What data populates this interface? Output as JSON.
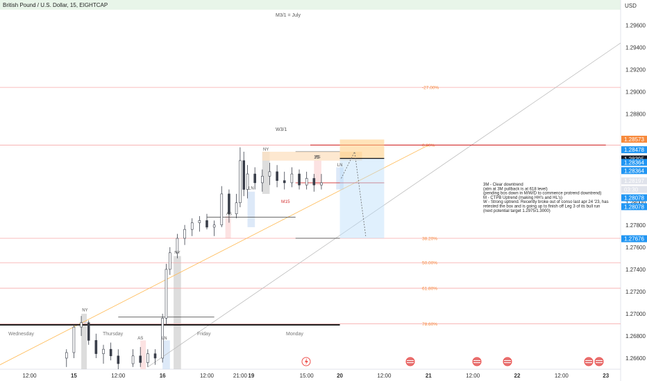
{
  "header": {
    "symbol_title": "British Pound / U.S. Dollar, 15, EIGHTCAP",
    "currency": "USD"
  },
  "annotations": {
    "monthly_label": "M3/1 = July",
    "weekly_label": "W3/1",
    "m15_label": "M15",
    "box_15_label": "15",
    "notes": [
      "3M - Clear downtrend",
      "(atm at 3M pullback is at 618 level)",
      "(pending bos down in M/W/D to commence protrend downtrend)",
      "M - CTPB Uptrend (making HH's and HL's)",
      "W - Strong uptrend. Recently broke out of conso last apr 24 '23, has",
      "retested the box and is going up to finish off Leg 3 of its bull run",
      "(next potential target 1.2975/1.3000)"
    ],
    "session_labels": [
      {
        "text": "NY",
        "x": "2023-06-15T03:00",
        "price": 1.2702
      },
      {
        "text": "AS",
        "x": "2023-06-15T18:00",
        "price": 1.2677
      },
      {
        "text": "LN",
        "x": "2023-06-16T00:30",
        "price": 1.2677
      },
      {
        "text": "NY",
        "x": "2023-06-16T04:00",
        "price": 1.2754
      },
      {
        "text": "AS",
        "x": "2023-06-16T18:00",
        "price": 1.2789
      },
      {
        "text": "LN",
        "x": "2023-06-17T00:00",
        "price": 1.2812
      },
      {
        "text": "NY",
        "x": "2023-06-17T04:00",
        "price": 1.2847
      },
      {
        "text": "AS",
        "x": "2023-06-17T18:00",
        "price": 1.284
      },
      {
        "text": "LN",
        "x": "2023-06-18T00:00",
        "price": 1.2833
      }
    ],
    "day_labels": [
      "Wednesday",
      "Thursday",
      "Friday",
      "Monday"
    ]
  },
  "price_axis": {
    "ticks": [
      "1.29600",
      "1.29400",
      "1.29200",
      "1.29000",
      "1.28800",
      "1.28000",
      "1.27800",
      "1.27600",
      "1.27400",
      "1.27200",
      "1.27000",
      "1.26800",
      "1.26600"
    ],
    "badges": [
      {
        "text": "1.28573",
        "price": 1.28573,
        "color": "#f7893b"
      },
      {
        "text": "1.28478",
        "price": 1.28478,
        "color": "#2196f3"
      },
      {
        "text": "1.28395",
        "price": 1.28395,
        "color": "#131722"
      },
      {
        "text": "1.28364",
        "price": 1.28364,
        "color": "#2196f3"
      },
      {
        "text": "1.28364",
        "price": 1.2829,
        "color": "#2196f3"
      },
      {
        "text": "1.28197",
        "price": 1.28197,
        "color": "#e0e3eb",
        "fg": "#131722"
      },
      {
        "text": "03:30",
        "price": 1.2812,
        "color": "#e0e3eb",
        "fg": "#131722"
      },
      {
        "text": "1.28078",
        "price": 1.28045,
        "color": "#2196f3"
      },
      {
        "text": "1.28078",
        "price": 1.27965,
        "color": "#2196f3"
      },
      {
        "text": "1.27676",
        "price": 1.27676,
        "color": "#2196f3"
      }
    ]
  },
  "time_axis": {
    "ticks": [
      "12:00",
      "15",
      "12:00",
      "16",
      "12:00",
      "21:00",
      "19",
      "15:00",
      "20",
      "12:00",
      "21",
      "12:00",
      "22",
      "12:00",
      "23"
    ],
    "tick_times": [
      "2023-06-14T12:00",
      "2023-06-15T00:00",
      "2023-06-15T12:00",
      "2023-06-16T00:00",
      "2023-06-16T12:00",
      "2023-06-16T21:00",
      "2023-06-17T00:00",
      "2023-06-17T15:00",
      "2023-06-18T00:00",
      "2023-06-18T12:00",
      "2023-06-19T00:00",
      "2023-06-19T12:00",
      "2023-06-20T00:00",
      "2023-06-20T12:00",
      "2023-06-21T00:00"
    ]
  },
  "chart_data": {
    "type": "candlestick",
    "title": "British Pound / U.S. Dollar, 15, EIGHTCAP",
    "ylabel": "USD",
    "ylim": [
      1.265,
      1.2974
    ],
    "x_range": [
      "2023-06-14T04:00",
      "2023-06-21T04:00"
    ],
    "candles": [
      {
        "t": "2023-06-14T22:00",
        "o": 1.266,
        "h": 1.2668,
        "l": 1.2652,
        "c": 1.2665
      },
      {
        "t": "2023-06-15T00:00",
        "o": 1.2665,
        "h": 1.269,
        "l": 1.266,
        "c": 1.2688
      },
      {
        "t": "2023-06-15T02:00",
        "o": 1.2688,
        "h": 1.2698,
        "l": 1.268,
        "c": 1.2692
      },
      {
        "t": "2023-06-15T04:00",
        "o": 1.2692,
        "h": 1.2694,
        "l": 1.2672,
        "c": 1.2676
      },
      {
        "t": "2023-06-15T06:00",
        "o": 1.2676,
        "h": 1.2682,
        "l": 1.266,
        "c": 1.2664
      },
      {
        "t": "2023-06-15T08:00",
        "o": 1.2664,
        "h": 1.2672,
        "l": 1.2655,
        "c": 1.2668
      },
      {
        "t": "2023-06-15T10:00",
        "o": 1.2668,
        "h": 1.2674,
        "l": 1.2658,
        "c": 1.2662
      },
      {
        "t": "2023-06-15T12:00",
        "o": 1.2662,
        "h": 1.2668,
        "l": 1.265,
        "c": 1.2655
      },
      {
        "t": "2023-06-15T16:00",
        "o": 1.2655,
        "h": 1.2668,
        "l": 1.2652,
        "c": 1.2662
      },
      {
        "t": "2023-06-15T18:00",
        "o": 1.2662,
        "h": 1.267,
        "l": 1.2652,
        "c": 1.2656
      },
      {
        "t": "2023-06-15T20:00",
        "o": 1.2656,
        "h": 1.2668,
        "l": 1.2652,
        "c": 1.2664
      },
      {
        "t": "2023-06-15T22:00",
        "o": 1.2664,
        "h": 1.2668,
        "l": 1.2654,
        "c": 1.266
      },
      {
        "t": "2023-06-16T00:00",
        "o": 1.266,
        "h": 1.27,
        "l": 1.2656,
        "c": 1.2696
      },
      {
        "t": "2023-06-16T01:00",
        "o": 1.2696,
        "h": 1.2745,
        "l": 1.269,
        "c": 1.274
      },
      {
        "t": "2023-06-16T02:00",
        "o": 1.274,
        "h": 1.276,
        "l": 1.2735,
        "c": 1.2755
      },
      {
        "t": "2023-06-16T04:00",
        "o": 1.2755,
        "h": 1.2772,
        "l": 1.275,
        "c": 1.2768
      },
      {
        "t": "2023-06-16T06:00",
        "o": 1.2768,
        "h": 1.278,
        "l": 1.2762,
        "c": 1.2776
      },
      {
        "t": "2023-06-16T08:00",
        "o": 1.2776,
        "h": 1.2786,
        "l": 1.277,
        "c": 1.2782
      },
      {
        "t": "2023-06-16T10:00",
        "o": 1.2782,
        "h": 1.2788,
        "l": 1.2774,
        "c": 1.2784
      },
      {
        "t": "2023-06-16T12:00",
        "o": 1.2784,
        "h": 1.279,
        "l": 1.2776,
        "c": 1.2778
      },
      {
        "t": "2023-06-16T14:00",
        "o": 1.2778,
        "h": 1.2784,
        "l": 1.277,
        "c": 1.278
      },
      {
        "t": "2023-06-16T16:00",
        "o": 1.278,
        "h": 1.2815,
        "l": 1.2778,
        "c": 1.2808
      },
      {
        "t": "2023-06-16T18:00",
        "o": 1.2808,
        "h": 1.2812,
        "l": 1.2782,
        "c": 1.279
      },
      {
        "t": "2023-06-16T20:00",
        "o": 1.279,
        "h": 1.2808,
        "l": 1.2786,
        "c": 1.28
      },
      {
        "t": "2023-06-16T21:00",
        "o": 1.28,
        "h": 1.285,
        "l": 1.2796,
        "c": 1.2838
      },
      {
        "t": "2023-06-16T22:00",
        "o": 1.2838,
        "h": 1.2846,
        "l": 1.2806,
        "c": 1.2812
      },
      {
        "t": "2023-06-16T23:00",
        "o": 1.2812,
        "h": 1.2834,
        "l": 1.2804,
        "c": 1.2826
      },
      {
        "t": "2023-06-17T01:00",
        "o": 1.2826,
        "h": 1.2832,
        "l": 1.2812,
        "c": 1.2818
      },
      {
        "t": "2023-06-17T03:00",
        "o": 1.2818,
        "h": 1.283,
        "l": 1.281,
        "c": 1.2824
      },
      {
        "t": "2023-06-17T05:00",
        "o": 1.2824,
        "h": 1.2836,
        "l": 1.2816,
        "c": 1.2828
      },
      {
        "t": "2023-06-17T07:00",
        "o": 1.2828,
        "h": 1.2834,
        "l": 1.2814,
        "c": 1.282
      },
      {
        "t": "2023-06-17T09:00",
        "o": 1.282,
        "h": 1.2828,
        "l": 1.2812,
        "c": 1.2818
      },
      {
        "t": "2023-06-17T11:00",
        "o": 1.2818,
        "h": 1.2832,
        "l": 1.2814,
        "c": 1.2826
      },
      {
        "t": "2023-06-17T13:00",
        "o": 1.2826,
        "h": 1.283,
        "l": 1.2812,
        "c": 1.2816
      },
      {
        "t": "2023-06-17T15:00",
        "o": 1.2816,
        "h": 1.2828,
        "l": 1.2812,
        "c": 1.2822
      },
      {
        "t": "2023-06-17T17:00",
        "o": 1.2822,
        "h": 1.2826,
        "l": 1.281,
        "c": 1.2816
      },
      {
        "t": "2023-06-17T19:00",
        "o": 1.2816,
        "h": 1.2826,
        "l": 1.2812,
        "c": 1.2818
      }
    ],
    "fib_levels": [
      {
        "label": "-27.00%",
        "price": 1.2904
      },
      {
        "label": "0.00%",
        "price": 1.2852
      },
      {
        "label": "38.20%",
        "price": 1.2768
      },
      {
        "label": "50.00%",
        "price": 1.2746
      },
      {
        "label": "61.80%",
        "price": 1.2723
      },
      {
        "label": "78.60%",
        "price": 1.2691
      }
    ],
    "colors": {
      "up": "#26a69a",
      "down": "#ef5350",
      "candle": "#3a3f4a",
      "fib_line": "#f7a8a8",
      "fib_text": "#f7893b",
      "trendline": "#bdbdbd",
      "channel": "#ffb74d",
      "resistance": "#d32f2f",
      "target_box": "#bbdefb",
      "stop_box": "#ffcc80"
    }
  }
}
